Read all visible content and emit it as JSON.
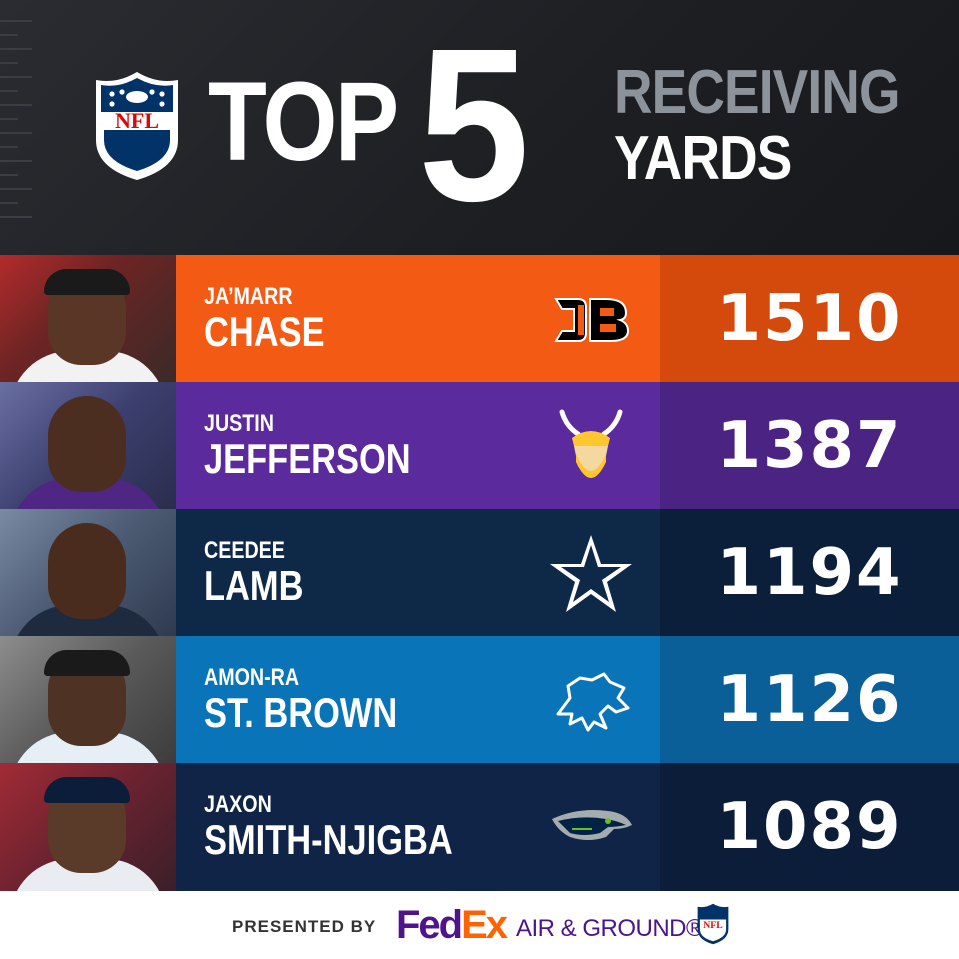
{
  "header": {
    "title_top": "TOP",
    "title_number": "5",
    "subtitle_line1": "RECEIVING",
    "subtitle_line2": "YARDS",
    "logo_text": "NFL"
  },
  "rows": [
    {
      "first_name": "JA’MARR",
      "last_name": "CHASE",
      "yards": "1510",
      "team_logo_icon": "bengals-logo-icon",
      "name_color": "#f35a14",
      "yards_color": "#d44a0c"
    },
    {
      "first_name": "JUSTIN",
      "last_name": "JEFFERSON",
      "yards": "1387",
      "team_logo_icon": "vikings-logo-icon",
      "name_color": "#5b2a9c",
      "yards_color": "#4a2383"
    },
    {
      "first_name": "CEEDEE",
      "last_name": "LAMB",
      "yards": "1194",
      "team_logo_icon": "cowboys-star-icon",
      "name_color": "#0e2848",
      "yards_color": "#0b1f3a"
    },
    {
      "first_name": "AMON-RA",
      "last_name": "ST. BROWN",
      "yards": "1126",
      "team_logo_icon": "lions-logo-icon",
      "name_color": "#0a74b8",
      "yards_color": "#0b5f98"
    },
    {
      "first_name": "JAXON",
      "last_name": "SMITH-NJIGBA",
      "yards": "1089",
      "team_logo_icon": "seahawks-logo-icon",
      "name_color": "#0f2447",
      "yards_color": "#0c1d3a"
    }
  ],
  "footer": {
    "presented_by": "PRESENTED BY",
    "fedex_fed": "Fed",
    "fedex_ex": "Ex",
    "air_ground": "AIR & GROUND®"
  }
}
